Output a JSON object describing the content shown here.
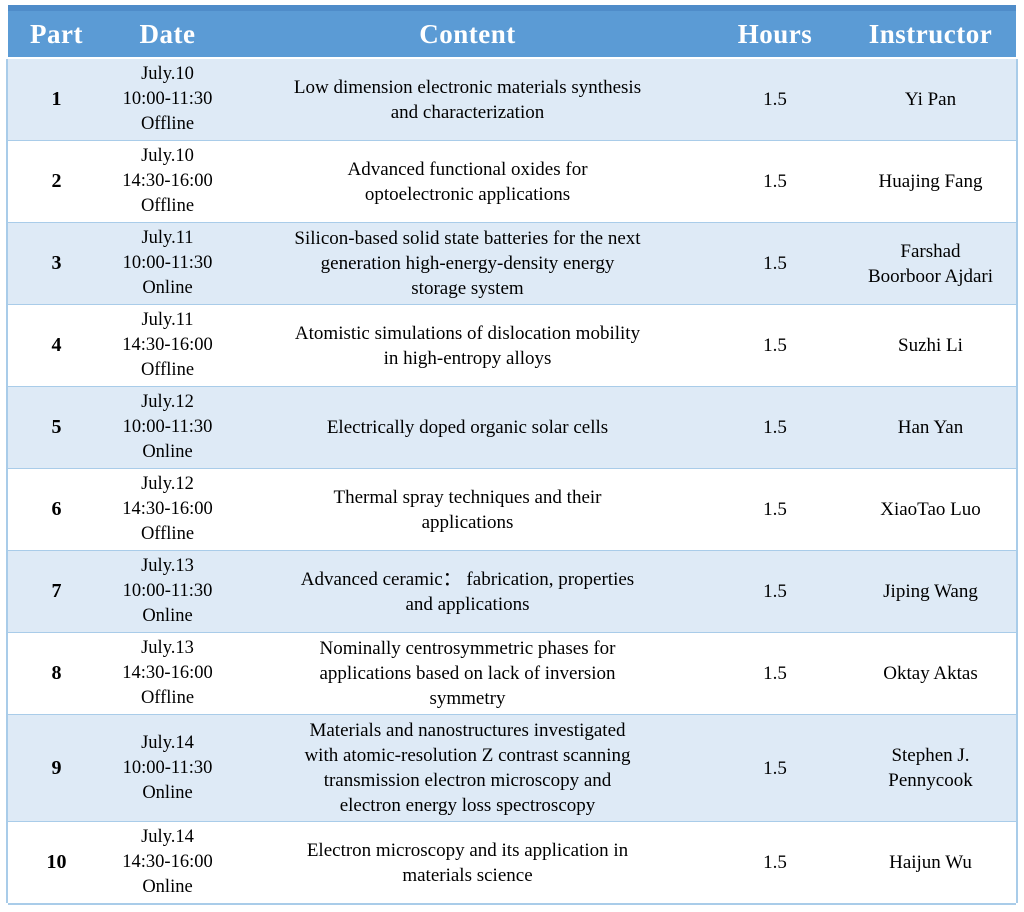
{
  "colors": {
    "header_bg": "#5B9BD5",
    "header_top_border": "#4F8CC9",
    "header_text": "#FFFFFF",
    "row_banded_bg": "#DEEAF6",
    "row_plain_bg": "#FFFFFF",
    "border": "#A9CCE9",
    "body_text": "#000000"
  },
  "table": {
    "columns": [
      {
        "id": "part",
        "label": "Part"
      },
      {
        "id": "date",
        "label": "Date"
      },
      {
        "id": "content",
        "label": "Content"
      },
      {
        "id": "hours",
        "label": "Hours"
      },
      {
        "id": "instructor",
        "label": "Instructor"
      }
    ],
    "rows": [
      {
        "part": "1",
        "date": "July.10\n10:00-11:30\nOffline",
        "content": "Low dimension electronic materials synthesis\nand characterization",
        "hours": "1.5",
        "instructor": "Yi Pan"
      },
      {
        "part": "2",
        "date": "July.10\n14:30-16:00\nOffline",
        "content": "Advanced functional oxides for\noptoelectronic applications",
        "hours": "1.5",
        "instructor": "Huajing Fang"
      },
      {
        "part": "3",
        "date": "July.11\n10:00-11:30\nOnline",
        "content": "Silicon-based solid state batteries for the next\ngeneration high-energy-density energy\nstorage system",
        "hours": "1.5",
        "instructor": "Farshad\nBoorboor Ajdari"
      },
      {
        "part": "4",
        "date": "July.11\n14:30-16:00\nOffline",
        "content": "Atomistic simulations of dislocation mobility\nin high-entropy alloys",
        "hours": "1.5",
        "instructor": "Suzhi Li"
      },
      {
        "part": "5",
        "date": "July.12\n10:00-11:30\nOnline",
        "content": "Electrically doped organic solar cells",
        "hours": "1.5",
        "instructor": "Han Yan"
      },
      {
        "part": "6",
        "date": "July.12\n14:30-16:00\nOffline",
        "content": "Thermal spray techniques and their\napplications",
        "hours": "1.5",
        "instructor": "XiaoTao Luo"
      },
      {
        "part": "7",
        "date": "July.13\n10:00-11:30\nOnline",
        "content": "Advanced ceramic： fabrication, properties\nand applications",
        "hours": "1.5",
        "instructor": "Jiping Wang"
      },
      {
        "part": "8",
        "date": "July.13\n14:30-16:00\nOffline",
        "content": "Nominally centrosymmetric phases for\napplications based on lack of inversion\nsymmetry",
        "hours": "1.5",
        "instructor": "Oktay Aktas"
      },
      {
        "part": "9",
        "date": "July.14\n10:00-11:30\nOnline",
        "content": "Materials and nanostructures investigated\nwith atomic-resolution Z contrast scanning\ntransmission electron microscopy and\nelectron energy loss spectroscopy",
        "hours": "1.5",
        "instructor": "Stephen J.\nPennycook"
      },
      {
        "part": "10",
        "date": "July.14\n14:30-16:00\nOnline",
        "content": "Electron microscopy and its application in\nmaterials science",
        "hours": "1.5",
        "instructor": "Haijun Wu"
      }
    ]
  }
}
